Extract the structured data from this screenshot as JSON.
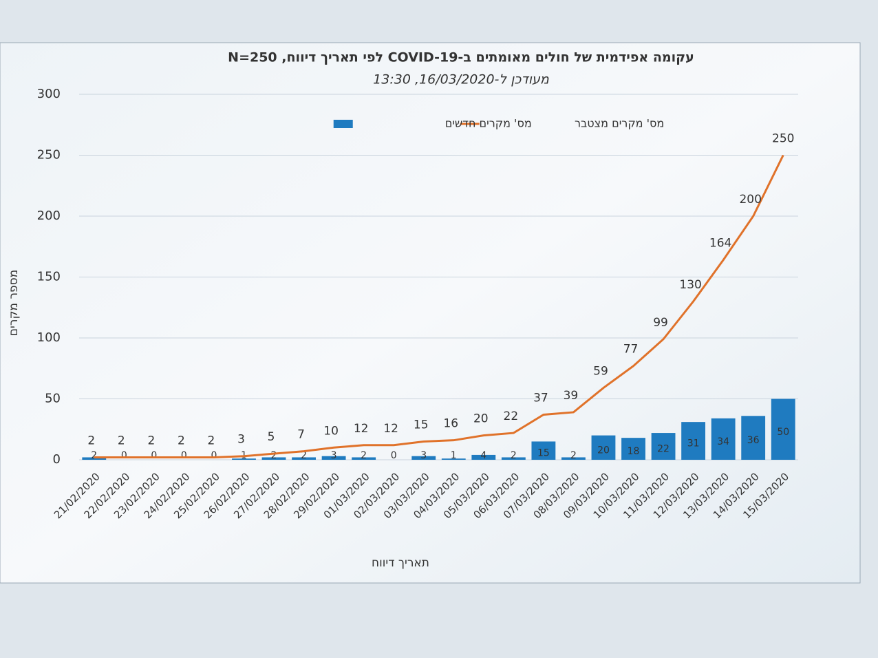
{
  "chart_data": {
    "type": "combo",
    "title": "עקומה אפידמית של חולים מאומתים ב-COVID-19 לפי תאריך דיווח, N=250",
    "subtitle": "מעודכן ל-16/03/2020, 13:30",
    "y_label": "מספר מקרים",
    "x_label": "תאריך דיווח",
    "categories": [
      "21/02/2020",
      "22/02/2020",
      "23/02/2020",
      "24/02/2020",
      "25/02/2020",
      "26/02/2020",
      "27/02/2020",
      "28/02/2020",
      "29/02/2020",
      "01/03/2020",
      "02/03/2020",
      "03/03/2020",
      "04/03/2020",
      "05/03/2020",
      "06/03/2020",
      "07/03/2020",
      "08/03/2020",
      "09/03/2020",
      "10/03/2020",
      "11/03/2020",
      "12/03/2020",
      "13/03/2020",
      "14/03/2020",
      "15/03/2020"
    ],
    "series": [
      {
        "name": "מס' מקרים חדשים",
        "type": "bar",
        "color": "#1f7bc0",
        "values": [
          2,
          0,
          0,
          0,
          0,
          1,
          2,
          2,
          3,
          2,
          0,
          3,
          1,
          4,
          2,
          15,
          2,
          20,
          18,
          22,
          31,
          34,
          36,
          50
        ]
      },
      {
        "name": "מס' מקרים מצטבר",
        "type": "line",
        "color": "#e0722a",
        "values": [
          2,
          2,
          2,
          2,
          2,
          3,
          5,
          7,
          10,
          12,
          12,
          15,
          16,
          20,
          22,
          37,
          39,
          59,
          77,
          99,
          130,
          164,
          200,
          250
        ]
      }
    ],
    "ylim": [
      0,
      300
    ],
    "yticks": [
      0,
      50,
      100,
      150,
      200,
      250,
      300
    ],
    "grid": true,
    "legend": "top"
  }
}
